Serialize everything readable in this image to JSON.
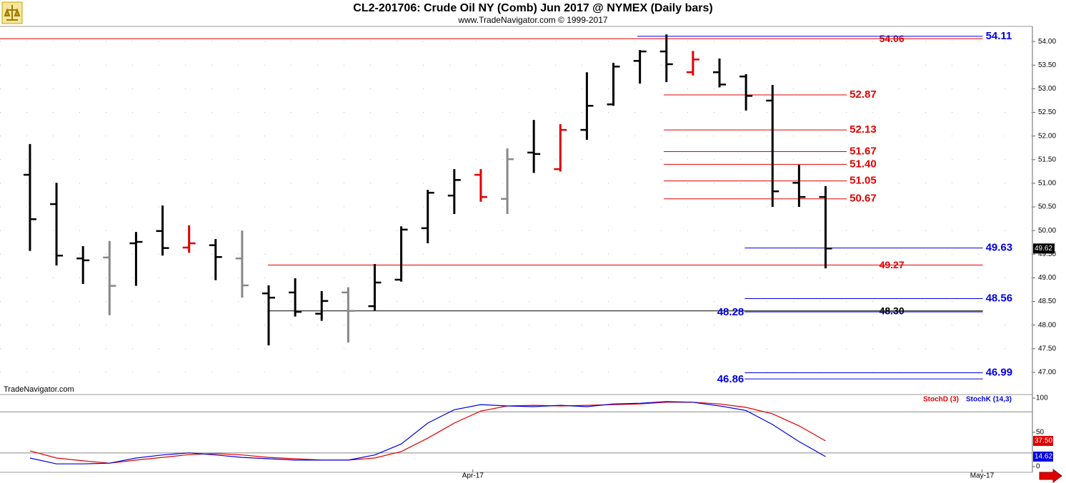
{
  "chart_data": [
    {
      "type": "ohlc",
      "title": "CL2-201706:  Crude Oil NY (Comb) Jun 2017 @ NYMEX  (Daily bars)",
      "subtitle": "www.TradeNavigator.com © 1999-2017",
      "watermark": "TradeNavigator.com",
      "x": [
        0,
        1,
        2,
        3,
        4,
        5,
        6,
        7,
        8,
        9,
        10,
        11,
        12,
        13,
        14,
        15,
        16,
        17,
        18,
        19,
        20,
        21,
        22,
        23,
        24,
        25,
        26,
        27,
        28,
        29,
        30
      ],
      "xlim": [
        -1.13,
        37.8
      ],
      "xticks": [
        {
          "value": 16.7,
          "label": "Apr-17"
        },
        {
          "value": 35.9,
          "label": "May-17"
        }
      ],
      "open": [
        51.18,
        50.56,
        49.41,
        49.43,
        49.73,
        49.99,
        49.64,
        49.69,
        49.41,
        48.67,
        48.69,
        48.24,
        48.69,
        48.4,
        48.96,
        50.05,
        50.74,
        51.18,
        50.67,
        51.65,
        51.3,
        52.13,
        52.67,
        53.59,
        53.79,
        53.35,
        53.35,
        53.26,
        52.75,
        51.01,
        50.71
      ],
      "high": [
        51.83,
        51.01,
        49.67,
        49.78,
        49.97,
        50.53,
        50.11,
        49.82,
        50.0,
        48.84,
        48.99,
        48.72,
        48.8,
        49.29,
        50.09,
        50.86,
        51.3,
        51.3,
        51.74,
        52.34,
        52.25,
        53.35,
        53.55,
        53.82,
        54.15,
        53.8,
        53.64,
        53.31,
        53.08,
        51.39,
        50.94
      ],
      "low": [
        49.57,
        49.26,
        48.87,
        48.21,
        48.83,
        49.47,
        49.53,
        48.95,
        48.58,
        47.57,
        48.18,
        48.09,
        47.63,
        48.31,
        48.92,
        49.73,
        50.35,
        50.61,
        50.35,
        51.22,
        51.25,
        51.92,
        52.64,
        53.11,
        53.14,
        53.28,
        53.03,
        52.54,
        50.5,
        50.5,
        49.2
      ],
      "close": [
        50.24,
        49.47,
        49.37,
        48.83,
        49.76,
        49.63,
        49.73,
        49.44,
        48.84,
        48.58,
        48.28,
        48.51,
        48.3,
        48.9,
        50.02,
        50.8,
        51.07,
        50.71,
        51.51,
        51.62,
        52.13,
        52.64,
        53.47,
        53.79,
        53.52,
        53.62,
        53.09,
        52.85,
        50.83,
        50.71,
        49.62
      ],
      "colors": [
        "#000",
        "#000",
        "#000",
        "#888",
        "#000",
        "#000",
        "#e00000",
        "#000",
        "#888",
        "#000",
        "#000",
        "#000",
        "#888",
        "#000",
        "#000",
        "#000",
        "#000",
        "#e00000",
        "#888",
        "#000",
        "#e00000",
        "#000",
        "#000",
        "#000",
        "#000",
        "#e00000",
        "#000",
        "#000",
        "#000",
        "#000",
        "#000"
      ],
      "ylim": [
        46.53,
        54.32
      ],
      "yticks": [
        {
          "value": 47,
          "label": "47.00"
        },
        {
          "value": 47.5,
          "label": "47.50"
        },
        {
          "value": 48,
          "label": "48.00"
        },
        {
          "value": 48.5,
          "label": "48.50"
        },
        {
          "value": 49,
          "label": "49.00"
        },
        {
          "value": 49.5,
          "label": "49.50"
        },
        {
          "value": 50,
          "label": "50.00"
        },
        {
          "value": 50.5,
          "label": "50.50"
        },
        {
          "value": 51,
          "label": "51.00"
        },
        {
          "value": 51.5,
          "label": "51.50"
        },
        {
          "value": 52,
          "label": "52.00"
        },
        {
          "value": 52.5,
          "label": "52.50"
        },
        {
          "value": 53,
          "label": "53.00"
        },
        {
          "value": 53.5,
          "label": "53.50"
        },
        {
          "value": 54,
          "label": "54.00"
        }
      ],
      "grid": true,
      "levels": [
        {
          "value": 54.06,
          "color": "#e00000",
          "from": -1.13,
          "to": 35.93,
          "label_pos": "inline"
        },
        {
          "value": 54.11,
          "color": "#0000e0",
          "from": 22.9,
          "to": 35.93,
          "label_pos": "end"
        },
        {
          "value": 52.87,
          "color": "#e00000",
          "from": 23.9,
          "to": 30.8,
          "label_pos": "end"
        },
        {
          "value": 52.13,
          "color": "#e00000",
          "from": 23.9,
          "to": 30.8,
          "label_pos": "end"
        },
        {
          "value": 51.67,
          "color": "#e00000",
          "from": 23.9,
          "to": 30.8,
          "label_pos": "end"
        },
        {
          "value": 51.4,
          "label": "51.40",
          "color": "#e00000",
          "from": 23.9,
          "to": 30.8,
          "label_pos": "end"
        },
        {
          "value": 51.05,
          "color": "#e00000",
          "from": 23.9,
          "to": 30.8,
          "label_pos": "end"
        },
        {
          "value": 50.67,
          "color": "#e00000",
          "from": 23.9,
          "to": 30.8,
          "label_pos": "end"
        },
        {
          "value": 49.63,
          "color": "#0000e0",
          "from": 26.95,
          "to": 35.93,
          "label_pos": "end"
        },
        {
          "value": 49.27,
          "color": "#e00000",
          "from": 8.97,
          "to": 35.93,
          "label_pos": "inline"
        },
        {
          "value": 48.56,
          "color": "#0000e0",
          "from": 26.95,
          "to": 35.93,
          "label_pos": "end"
        },
        {
          "value": 48.3,
          "label": "48.30",
          "color": "#000000",
          "from": 8.97,
          "to": 35.93,
          "label_pos": "inline"
        },
        {
          "value": 48.28,
          "color": "#0000e0",
          "from": 26.95,
          "to": 35.93,
          "label_pos": "start"
        },
        {
          "value": 46.99,
          "color": "#0000e0",
          "from": 26.95,
          "to": 35.93,
          "label_pos": "end"
        },
        {
          "value": 46.86,
          "color": "#0000e0",
          "from": 26.95,
          "to": 35.93,
          "label_pos": "start"
        }
      ]
    },
    {
      "type": "line",
      "x": [
        0,
        1,
        2,
        3,
        4,
        5,
        6,
        7,
        8,
        9,
        10,
        11,
        12,
        13,
        14,
        15,
        16,
        17,
        18,
        19,
        20,
        21,
        22,
        23,
        24,
        25,
        26,
        27,
        28,
        29,
        30
      ],
      "xlim": [
        -1.13,
        37.8
      ],
      "ylim": [
        -8.3,
        105.2
      ],
      "yticks": [
        100,
        50,
        0
      ],
      "reference_lines": [
        80,
        20
      ],
      "series": [
        {
          "name": "StochD (3)",
          "color": "#e00000",
          "values": [
            23,
            12.5,
            8.5,
            5,
            9.5,
            13.5,
            17.5,
            19,
            17,
            13.5,
            11.5,
            9.5,
            9.5,
            12.5,
            22,
            41.5,
            63.5,
            81,
            88.5,
            89.5,
            88.5,
            89.5,
            90.5,
            91.5,
            94,
            94,
            91.5,
            86.5,
            77,
            59.5,
            37.5
          ],
          "value_labels": [
            null,
            null,
            null,
            null,
            null,
            null,
            null,
            null,
            null,
            null,
            null,
            null,
            null,
            null,
            null,
            null,
            null,
            null,
            null,
            null,
            null,
            null,
            null,
            null,
            null,
            null,
            null,
            null,
            null,
            null,
            "37.50"
          ]
        },
        {
          "name": "StochK (14,3)",
          "color": "#0000e0",
          "values": [
            12.5,
            4,
            4,
            5,
            12.5,
            17,
            20,
            17,
            13.5,
            11.5,
            9.5,
            9.5,
            9.5,
            17,
            33,
            63.5,
            83,
            90.5,
            88.5,
            87.5,
            89.5,
            87.5,
            91.5,
            92.5,
            95,
            94,
            88.5,
            82,
            61.5,
            36.5,
            14.62
          ],
          "value_labels": [
            null,
            null,
            null,
            null,
            null,
            null,
            null,
            null,
            null,
            null,
            null,
            null,
            null,
            null,
            null,
            null,
            null,
            null,
            null,
            null,
            null,
            null,
            null,
            null,
            null,
            null,
            null,
            null,
            null,
            null,
            "14.62"
          ]
        }
      ]
    }
  ]
}
